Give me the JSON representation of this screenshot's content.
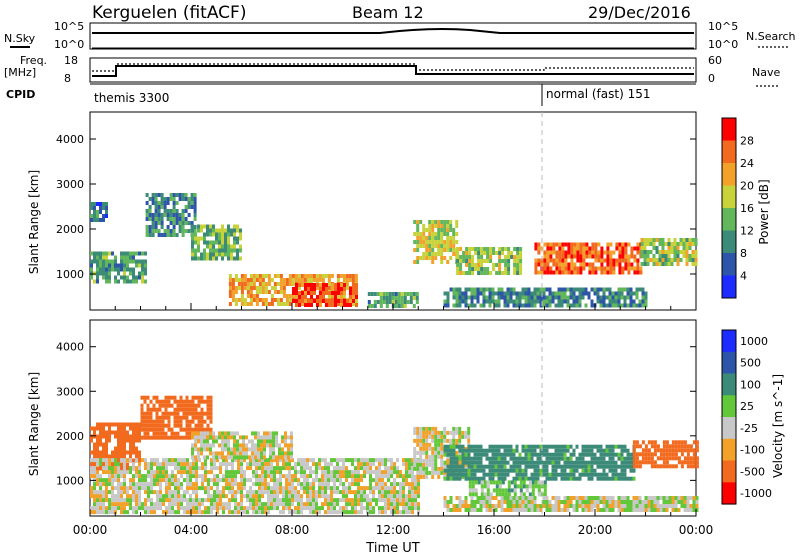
{
  "header": {
    "station": "Kerguelen (fitACF)",
    "beam": "Beam 12",
    "date": "29/Dec/2016"
  },
  "status_panels": {
    "nsky_label": "N.Sky",
    "nsky_ticks": [
      "10^5",
      "10^0"
    ],
    "nsearch_label": "N.Search",
    "nsearch_ticks": [
      "10^5",
      "10^0"
    ],
    "freq_label": "Freq.",
    "freq_unit": "[MHz]",
    "freq_ticks": [
      "18",
      "8"
    ],
    "nave_label": "Nave",
    "nave_ticks": [
      "60",
      "0"
    ],
    "cpid_label": "CPID",
    "cpid_segments": [
      {
        "label": "themis 3300",
        "start_hour": 0,
        "end_hour": 18
      },
      {
        "label": "normal (fast) 151",
        "start_hour": 18,
        "end_hour": 24
      }
    ]
  },
  "chart_data": [
    {
      "type": "heatmap",
      "title": "",
      "xlabel": "Time UT",
      "ylabel": "Slant Range [km]",
      "x_range_hours": [
        0,
        24
      ],
      "ylim": [
        200,
        4600
      ],
      "y_ticks": [
        1000,
        2000,
        3000,
        4000
      ],
      "colorbar": {
        "label": "Power [dB]",
        "ticks": [
          4,
          8,
          12,
          16,
          20,
          24,
          28
        ],
        "colors": [
          "#1c2bff",
          "#2e56a8",
          "#3c8a78",
          "#62b65c",
          "#c8d23a",
          "#f2a22a",
          "#f26a1e",
          "#ff0000"
        ]
      },
      "echo_regions": [
        {
          "t0": 0.0,
          "t1": 2.2,
          "r0": 800,
          "r1": 1500,
          "level": 12
        },
        {
          "t0": 0.0,
          "t1": 0.6,
          "r0": 2200,
          "r1": 2600,
          "level": 8
        },
        {
          "t0": 2.2,
          "t1": 4.2,
          "r0": 1900,
          "r1": 2800,
          "level": 10
        },
        {
          "t0": 4.0,
          "t1": 6.0,
          "r0": 1300,
          "r1": 2100,
          "level": 14
        },
        {
          "t0": 5.5,
          "t1": 10.5,
          "r0": 300,
          "r1": 1000,
          "level": 22
        },
        {
          "t0": 8.0,
          "t1": 10.5,
          "r0": 300,
          "r1": 800,
          "level": 28
        },
        {
          "t0": 11.0,
          "t1": 13.0,
          "r0": 300,
          "r1": 600,
          "level": 12
        },
        {
          "t0": 12.8,
          "t1": 14.5,
          "r0": 1300,
          "r1": 2200,
          "level": 18
        },
        {
          "t0": 14.5,
          "t1": 17.0,
          "r0": 1000,
          "r1": 1600,
          "level": 16
        },
        {
          "t0": 17.6,
          "t1": 21.8,
          "r0": 1000,
          "r1": 1700,
          "level": 26
        },
        {
          "t0": 21.8,
          "t1": 24.0,
          "r0": 1200,
          "r1": 1800,
          "level": 16
        },
        {
          "t0": 14.0,
          "t1": 22.0,
          "r0": 300,
          "r1": 700,
          "level": 10
        }
      ]
    },
    {
      "type": "heatmap",
      "title": "",
      "xlabel": "Time UT",
      "ylabel": "Slant Range [km]",
      "x_range_hours": [
        0,
        24
      ],
      "x_ticks": [
        "00:00",
        "04:00",
        "08:00",
        "12:00",
        "16:00",
        "20:00",
        "00:00"
      ],
      "ylim": [
        200,
        4600
      ],
      "y_ticks": [
        1000,
        2000,
        3000,
        4000
      ],
      "colorbar": {
        "label": "Velocity [m s^-1]",
        "ticks": [
          1000,
          500,
          100,
          25,
          -25,
          -100,
          -500,
          -1000
        ],
        "colors": [
          "#1c2bff",
          "#2e56a8",
          "#3c8a78",
          "#62c83a",
          "#c8c8c8",
          "#f2a22a",
          "#f26a1e",
          "#ff0000"
        ]
      },
      "echo_regions": [
        {
          "t0": 0.0,
          "t1": 2.0,
          "r0": 1300,
          "r1": 2300,
          "level": -200
        },
        {
          "t0": 2.0,
          "t1": 4.8,
          "r0": 2000,
          "r1": 2900,
          "level": -300
        },
        {
          "t0": 0.0,
          "t1": 13.0,
          "r0": 300,
          "r1": 1500,
          "level": 0
        },
        {
          "t0": 4.0,
          "t1": 8.0,
          "r0": 1500,
          "r1": 2100,
          "level": 0
        },
        {
          "t0": 12.8,
          "t1": 15.0,
          "r0": 1100,
          "r1": 2200,
          "level": 0
        },
        {
          "t0": 14.0,
          "t1": 21.5,
          "r0": 1000,
          "r1": 1800,
          "level": 150
        },
        {
          "t0": 15.0,
          "t1": 18.0,
          "r0": 700,
          "r1": 1000,
          "level": 60
        },
        {
          "t0": 21.5,
          "t1": 24.0,
          "r0": 1300,
          "r1": 1900,
          "level": -200
        },
        {
          "t0": 14.0,
          "t1": 24.0,
          "r0": 300,
          "r1": 650,
          "level": 0
        }
      ]
    }
  ]
}
